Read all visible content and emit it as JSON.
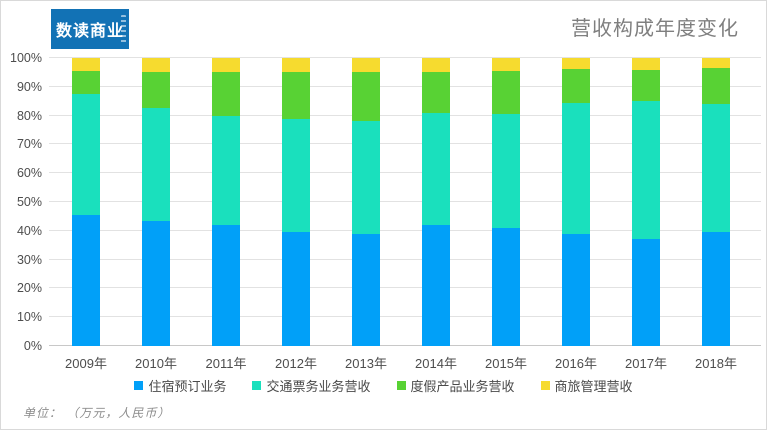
{
  "logo": {
    "text": "数读商业",
    "bg_color": "#1272b5"
  },
  "header": {
    "title": "营收构成年度变化"
  },
  "footer": {
    "unit_note": "单位： （万元，人民币）"
  },
  "chart_data": {
    "type": "bar",
    "stacked": true,
    "percent_stacked": true,
    "title": "营收构成年度变化",
    "categories": [
      "2009年",
      "2010年",
      "2011年",
      "2012年",
      "2013年",
      "2014年",
      "2015年",
      "2016年",
      "2017年",
      "2018年"
    ],
    "series": [
      {
        "name": "住宿预订业务",
        "color": "#01a0f8",
        "values": [
          45.5,
          43.5,
          42.0,
          39.5,
          39.0,
          42.0,
          41.0,
          39.0,
          37.0,
          39.5
        ]
      },
      {
        "name": "交通票务业务营收",
        "color": "#1ae0bd",
        "values": [
          42.0,
          39.0,
          38.0,
          39.5,
          39.0,
          39.0,
          39.5,
          45.5,
          48.0,
          44.5
        ]
      },
      {
        "name": "度假产品业务营收",
        "color": "#58d234",
        "values": [
          8.0,
          12.5,
          15.0,
          16.0,
          17.0,
          14.0,
          15.0,
          11.8,
          11.0,
          12.5
        ]
      },
      {
        "name": "商旅管理营收",
        "color": "#f6db2f",
        "values": [
          4.5,
          5.0,
          5.0,
          5.0,
          5.0,
          5.0,
          4.5,
          3.7,
          4.0,
          3.5
        ]
      }
    ],
    "y_ticks": [
      "0%",
      "10%",
      "20%",
      "30%",
      "40%",
      "50%",
      "60%",
      "70%",
      "80%",
      "90%",
      "100%"
    ],
    "ylim": [
      0,
      100
    ],
    "xlabel": "",
    "ylabel": "",
    "grid": true,
    "legend_position": "bottom"
  }
}
